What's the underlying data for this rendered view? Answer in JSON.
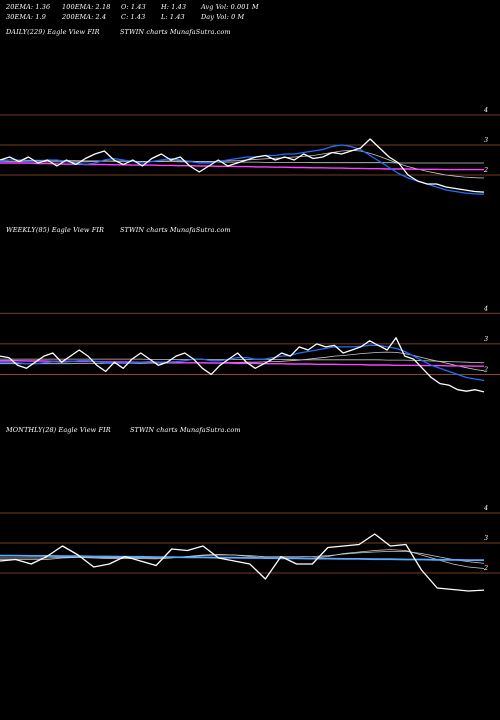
{
  "header": {
    "ema20": "20EMA: 1.36",
    "ema100": "100EMA: 2.18",
    "open": "O: 1.43",
    "high": "H: 1.43",
    "avg_vol": "Avg Vol: 0.001 M",
    "ema30": "30EMA: 1.9",
    "ema200": "200EMA: 2.4",
    "close": "C: 1.43",
    "low": "L: 1.43",
    "day_vol": "Day Vol: 0  M"
  },
  "panels": [
    {
      "title": "DAILY(229) Eagle  View  FIR",
      "source": "STWIN  charts MunafaSutra.com"
    },
    {
      "title": "WEEKLY(85) Eagle  View  FIR",
      "source": "STWIN  charts MunafaSutra.com"
    },
    {
      "title": "MONTHLY(28) Eagle  View  FIR",
      "source": "STWIN  charts MunafaSutra.com"
    }
  ],
  "colors": {
    "background": "#000000",
    "price": "#ffffff",
    "grid": "#a0522d",
    "ema_blue": "#1e6fff",
    "ema_pink": "#ff40ff",
    "ema_light": "#c8c8c8",
    "ema_monthly": "#5aa8ff"
  },
  "chart_data": [
    {
      "type": "line",
      "title": "DAILY(229) Eagle  View  FIR",
      "ylim": [
        1,
        4.5
      ],
      "y_ticks": [
        2,
        3,
        4
      ],
      "grid": true,
      "series": [
        {
          "values": [
            2.5,
            2.6,
            2.45,
            2.6,
            2.4,
            2.5,
            2.3,
            2.5,
            2.35,
            2.55,
            2.7,
            2.8,
            2.5,
            2.35,
            2.5,
            2.3,
            2.55,
            2.7,
            2.5,
            2.6,
            2.3,
            2.1,
            2.3,
            2.5,
            2.3,
            2.4,
            2.5,
            2.6,
            2.65,
            2.5,
            2.6,
            2.5,
            2.7,
            2.55,
            2.6,
            2.75,
            2.7,
            2.8,
            2.9,
            3.2,
            2.9,
            2.6,
            2.4,
            2.0,
            1.8,
            1.7,
            1.7,
            1.6,
            1.55,
            1.5,
            1.45,
            1.43
          ]
        },
        {
          "values": [
            2.45,
            2.5,
            2.5,
            2.45,
            2.45,
            2.5,
            2.5,
            2.45,
            2.4,
            2.35,
            2.4,
            2.5,
            2.55,
            2.5,
            2.45,
            2.4,
            2.45,
            2.5,
            2.55,
            2.5,
            2.45,
            2.4,
            2.4,
            2.45,
            2.5,
            2.55,
            2.6,
            2.6,
            2.65,
            2.65,
            2.7,
            2.7,
            2.75,
            2.8,
            2.85,
            2.95,
            3.0,
            2.95,
            2.85,
            2.65,
            2.45,
            2.25,
            2.05,
            1.9,
            1.8,
            1.7,
            1.6,
            1.5,
            1.45,
            1.4,
            1.37,
            1.36
          ]
        },
        {
          "values": [
            2.4,
            2.4,
            2.4,
            2.4,
            2.38,
            2.38,
            2.37,
            2.36,
            2.36,
            2.35,
            2.35,
            2.35,
            2.34,
            2.34,
            2.33,
            2.33,
            2.33,
            2.32,
            2.32,
            2.31,
            2.31,
            2.3,
            2.3,
            2.29,
            2.29,
            2.28,
            2.28,
            2.27,
            2.27,
            2.26,
            2.26,
            2.25,
            2.25,
            2.24,
            2.24,
            2.23,
            2.23,
            2.22,
            2.22,
            2.21,
            2.21,
            2.2,
            2.2,
            2.2,
            2.19,
            2.19,
            2.19,
            2.18,
            2.18,
            2.18,
            2.18,
            2.18
          ]
        },
        {
          "values": [
            2.5,
            2.5,
            2.5,
            2.49,
            2.49,
            2.49,
            2.48,
            2.48,
            2.48,
            2.47,
            2.47,
            2.47,
            2.46,
            2.46,
            2.46,
            2.45,
            2.45,
            2.45,
            2.45,
            2.44,
            2.44,
            2.44,
            2.44,
            2.43,
            2.43,
            2.43,
            2.43,
            2.43,
            2.42,
            2.42,
            2.42,
            2.42,
            2.42,
            2.41,
            2.41,
            2.41,
            2.41,
            2.41,
            2.41,
            2.41,
            2.41,
            2.41,
            2.4,
            2.4,
            2.4,
            2.4,
            2.4,
            2.4,
            2.4,
            2.4,
            2.4,
            2.4
          ]
        },
        {
          "values": [
            2.45,
            2.45,
            2.45,
            2.45,
            2.44,
            2.44,
            2.44,
            2.44,
            2.44,
            2.44,
            2.45,
            2.46,
            2.46,
            2.46,
            2.45,
            2.45,
            2.45,
            2.46,
            2.47,
            2.47,
            2.46,
            2.45,
            2.45,
            2.46,
            2.47,
            2.48,
            2.5,
            2.52,
            2.54,
            2.56,
            2.58,
            2.6,
            2.62,
            2.65,
            2.7,
            2.75,
            2.8,
            2.82,
            2.8,
            2.72,
            2.62,
            2.5,
            2.38,
            2.28,
            2.2,
            2.12,
            2.06,
            2.0,
            1.96,
            1.93,
            1.91,
            1.9
          ]
        }
      ]
    },
    {
      "type": "line",
      "title": "WEEKLY(85) Eagle  View  FIR",
      "ylim": [
        1,
        4.5
      ],
      "y_ticks": [
        2,
        3,
        4
      ],
      "grid": true,
      "series": [
        {
          "values": [
            2.6,
            2.55,
            2.3,
            2.2,
            2.4,
            2.6,
            2.7,
            2.4,
            2.6,
            2.8,
            2.6,
            2.3,
            2.1,
            2.4,
            2.2,
            2.5,
            2.7,
            2.5,
            2.3,
            2.4,
            2.6,
            2.7,
            2.5,
            2.2,
            2.0,
            2.3,
            2.5,
            2.7,
            2.4,
            2.2,
            2.35,
            2.5,
            2.7,
            2.6,
            2.9,
            2.8,
            3.0,
            2.9,
            2.95,
            2.7,
            2.8,
            2.9,
            3.1,
            2.95,
            2.8,
            3.2,
            2.6,
            2.5,
            2.2,
            1.9,
            1.7,
            1.65,
            1.5,
            1.45,
            1.5,
            1.43
          ]
        },
        {
          "values": [
            2.4,
            2.4,
            2.38,
            2.35,
            2.35,
            2.38,
            2.42,
            2.4,
            2.42,
            2.45,
            2.45,
            2.42,
            2.38,
            2.38,
            2.36,
            2.38,
            2.4,
            2.42,
            2.4,
            2.4,
            2.42,
            2.45,
            2.5,
            2.5,
            2.45,
            2.45,
            2.5,
            2.55,
            2.55,
            2.5,
            2.5,
            2.55,
            2.6,
            2.62,
            2.7,
            2.75,
            2.8,
            2.85,
            2.9,
            2.9,
            2.9,
            2.92,
            2.95,
            2.95,
            2.9,
            2.85,
            2.75,
            2.6,
            2.45,
            2.3,
            2.2,
            2.1,
            2.0,
            1.9,
            1.85,
            1.8
          ]
        },
        {
          "values": [
            2.45,
            2.45,
            2.45,
            2.44,
            2.44,
            2.44,
            2.43,
            2.43,
            2.43,
            2.42,
            2.42,
            2.42,
            2.41,
            2.41,
            2.41,
            2.4,
            2.4,
            2.4,
            2.39,
            2.39,
            2.39,
            2.38,
            2.38,
            2.38,
            2.37,
            2.37,
            2.37,
            2.36,
            2.36,
            2.36,
            2.35,
            2.35,
            2.35,
            2.34,
            2.34,
            2.34,
            2.33,
            2.33,
            2.33,
            2.32,
            2.32,
            2.32,
            2.31,
            2.31,
            2.31,
            2.3,
            2.3,
            2.3,
            2.29,
            2.29,
            2.29,
            2.28,
            2.28,
            2.28,
            2.27,
            2.27
          ]
        },
        {
          "values": [
            2.35,
            2.35,
            2.35,
            2.35,
            2.35,
            2.35,
            2.35,
            2.35,
            2.35,
            2.36,
            2.36,
            2.36,
            2.36,
            2.36,
            2.36,
            2.36,
            2.36,
            2.37,
            2.37,
            2.37,
            2.37,
            2.37,
            2.38,
            2.38,
            2.38,
            2.38,
            2.39,
            2.39,
            2.4,
            2.4,
            2.41,
            2.42,
            2.43,
            2.45,
            2.47,
            2.5,
            2.53,
            2.56,
            2.6,
            2.62,
            2.65,
            2.68,
            2.7,
            2.72,
            2.73,
            2.72,
            2.68,
            2.62,
            2.55,
            2.48,
            2.42,
            2.35,
            2.28,
            2.22,
            2.16,
            2.12
          ]
        },
        {
          "values": [
            2.5,
            2.5,
            2.5,
            2.5,
            2.5,
            2.5,
            2.5,
            2.5,
            2.5,
            2.5,
            2.5,
            2.5,
            2.5,
            2.5,
            2.5,
            2.5,
            2.5,
            2.49,
            2.49,
            2.49,
            2.49,
            2.49,
            2.49,
            2.49,
            2.49,
            2.49,
            2.49,
            2.49,
            2.49,
            2.49,
            2.49,
            2.49,
            2.49,
            2.49,
            2.48,
            2.48,
            2.48,
            2.48,
            2.48,
            2.48,
            2.48,
            2.48,
            2.48,
            2.48,
            2.47,
            2.47,
            2.47,
            2.46,
            2.45,
            2.44,
            2.43,
            2.42,
            2.41,
            2.4,
            2.39,
            2.38
          ]
        }
      ]
    },
    {
      "type": "line",
      "title": "MONTHLY(28) Eagle  View  FIR",
      "ylim": [
        1,
        4.5
      ],
      "y_ticks": [
        2,
        3,
        4
      ],
      "grid": true,
      "series": [
        {
          "values": [
            2.4,
            2.45,
            2.3,
            2.55,
            2.9,
            2.6,
            2.2,
            2.3,
            2.55,
            2.4,
            2.25,
            2.8,
            2.75,
            2.9,
            2.5,
            2.4,
            2.3,
            1.8,
            2.55,
            2.3,
            2.3,
            2.85,
            2.9,
            2.95,
            3.3,
            2.9,
            2.95,
            2.1,
            1.5,
            1.45,
            1.4,
            1.43
          ]
        },
        {
          "values": [
            2.58,
            2.58,
            2.57,
            2.57,
            2.56,
            2.56,
            2.55,
            2.55,
            2.54,
            2.54,
            2.53,
            2.53,
            2.52,
            2.52,
            2.51,
            2.51,
            2.5,
            2.5,
            2.49,
            2.49,
            2.48,
            2.48,
            2.47,
            2.47,
            2.46,
            2.46,
            2.45,
            2.45,
            2.44,
            2.44,
            2.43,
            2.43
          ]
        },
        {
          "values": [
            2.45,
            2.45,
            2.45,
            2.45,
            2.5,
            2.52,
            2.5,
            2.48,
            2.48,
            2.48,
            2.47,
            2.5,
            2.55,
            2.6,
            2.62,
            2.6,
            2.55,
            2.48,
            2.48,
            2.48,
            2.5,
            2.55,
            2.65,
            2.7,
            2.75,
            2.78,
            2.75,
            2.6,
            2.45,
            2.3,
            2.2,
            2.15
          ]
        },
        {
          "values": [
            2.5,
            2.5,
            2.5,
            2.5,
            2.52,
            2.53,
            2.52,
            2.51,
            2.51,
            2.51,
            2.5,
            2.52,
            2.55,
            2.58,
            2.6,
            2.6,
            2.58,
            2.54,
            2.54,
            2.54,
            2.55,
            2.58,
            2.63,
            2.67,
            2.7,
            2.72,
            2.72,
            2.65,
            2.55,
            2.45,
            2.38,
            2.32
          ]
        }
      ]
    }
  ]
}
